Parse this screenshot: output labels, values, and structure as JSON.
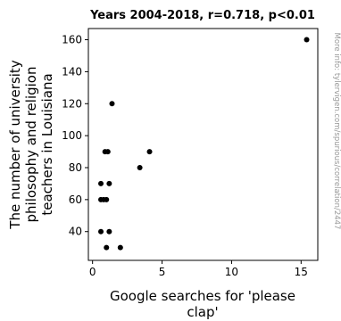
{
  "chart_data": {
    "type": "scatter",
    "title": "Years 2004-2018, r=0.718, p<0.01",
    "xlabel": [
      "Google searches for 'please",
      "clap'"
    ],
    "ylabel": [
      "The number of university",
      "philosophy and religion",
      "teachers in Louisiana"
    ],
    "side_note": "More info: tylervigen.com/spurious/correlation/2447",
    "xlim": [
      -0.3,
      16.2
    ],
    "ylim": [
      22,
      167
    ],
    "xticks": [
      0,
      5,
      10,
      15
    ],
    "yticks": [
      40,
      60,
      80,
      100,
      120,
      140,
      160
    ],
    "xtick_labels": [
      "0",
      "5",
      "10",
      "15"
    ],
    "ytick_labels": [
      "40",
      "60",
      "80",
      "100",
      "120",
      "140",
      "160"
    ],
    "grid": false,
    "legend": "none",
    "marker_color": "#000000",
    "points": [
      {
        "x": 15.4,
        "y": 160
      },
      {
        "x": 1.4,
        "y": 120
      },
      {
        "x": 4.1,
        "y": 90
      },
      {
        "x": 0.9,
        "y": 90
      },
      {
        "x": 1.1,
        "y": 90
      },
      {
        "x": 3.4,
        "y": 80
      },
      {
        "x": 0.6,
        "y": 70
      },
      {
        "x": 1.2,
        "y": 70
      },
      {
        "x": 0.6,
        "y": 60
      },
      {
        "x": 0.8,
        "y": 60
      },
      {
        "x": 1.0,
        "y": 60
      },
      {
        "x": 0.6,
        "y": 40
      },
      {
        "x": 1.2,
        "y": 40
      },
      {
        "x": 1.0,
        "y": 30
      },
      {
        "x": 2.0,
        "y": 30
      }
    ]
  }
}
